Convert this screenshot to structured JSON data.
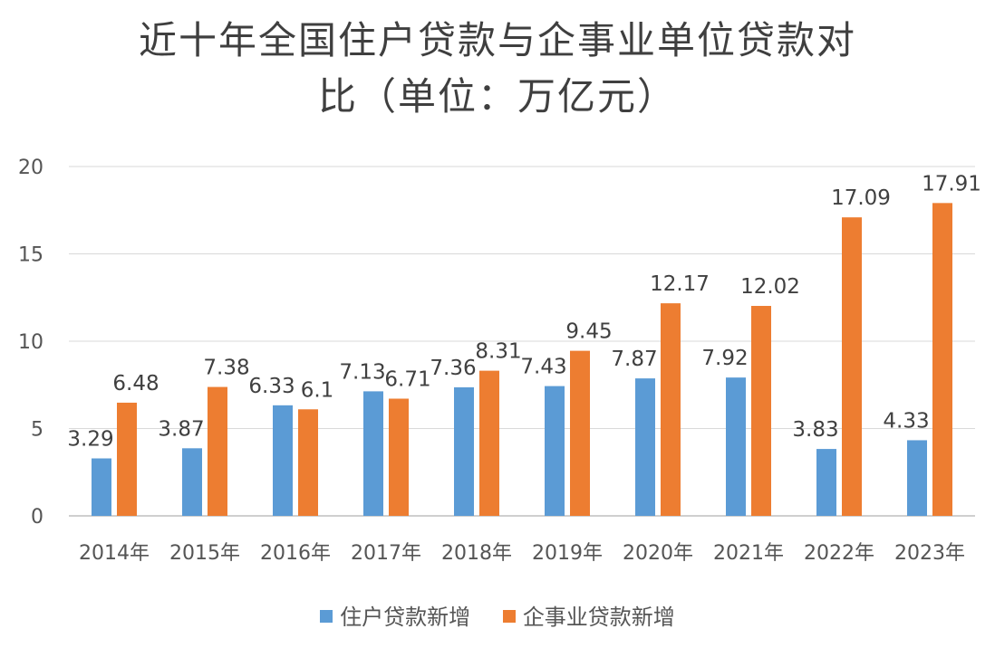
{
  "title_lines": [
    "近十年全国住户贷款与企事业单位贷款对",
    "比（单位：万亿元）"
  ],
  "chart_data": {
    "type": "bar",
    "title": "近十年全国住户贷款与企事业单位贷款对比（单位：万亿元）",
    "categories": [
      "2014年",
      "2015年",
      "2016年",
      "2017年",
      "2018年",
      "2019年",
      "2020年",
      "2021年",
      "2022年",
      "2023年"
    ],
    "series": [
      {
        "name": "住户贷款新增",
        "color": "#5b9bd5",
        "values": [
          3.29,
          3.87,
          6.33,
          7.13,
          7.36,
          7.43,
          7.87,
          7.92,
          3.83,
          4.33
        ],
        "labels": [
          "3.29",
          "3.87",
          "6.33",
          "7.13",
          "7.36",
          "7.43",
          "7.87",
          "7.92",
          "3.83",
          "4.33"
        ]
      },
      {
        "name": "企事业贷款新增",
        "color": "#ed7d31",
        "values": [
          6.48,
          7.38,
          6.1,
          6.71,
          8.31,
          9.45,
          12.17,
          12.02,
          17.09,
          17.91
        ],
        "labels": [
          "6.48",
          "7.38",
          "6.1",
          "6.71",
          "8.31",
          "9.45",
          "12.17",
          "12.02",
          "17.09",
          "17.91"
        ]
      }
    ],
    "ylim": [
      0,
      20
    ],
    "yticks": [
      0,
      5,
      10,
      15,
      20
    ],
    "xlabel": "",
    "ylabel": "",
    "grid": true,
    "legend_position": "bottom"
  }
}
